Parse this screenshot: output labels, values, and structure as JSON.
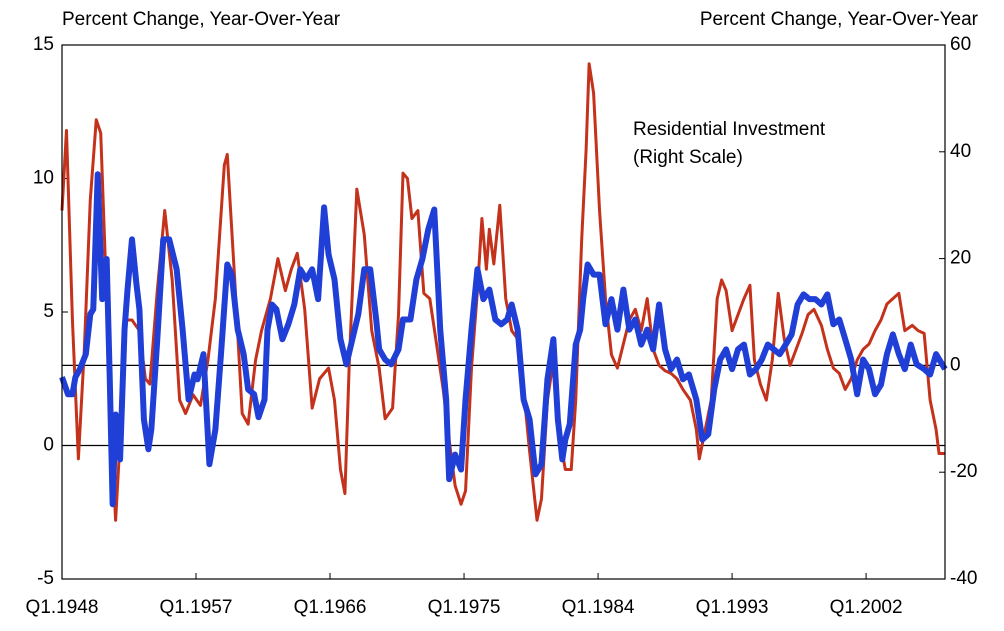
{
  "chart_data": {
    "type": "line",
    "y_label": "Percent Change, Year-Over-Year",
    "y2_label": "Percent Change, Year-Over-Year",
    "annotation": [
      "Residential Investment",
      "(Right Scale)"
    ],
    "xlim": [
      1948,
      2007.3
    ],
    "xticks": [
      {
        "value": 1948,
        "label": "Q1.1948"
      },
      {
        "value": 1957,
        "label": "Q1.1957"
      },
      {
        "value": 1966,
        "label": "Q1.1966"
      },
      {
        "value": 1975,
        "label": "Q1.1975"
      },
      {
        "value": 1984,
        "label": "Q1.1984"
      },
      {
        "value": 1993,
        "label": "Q1.1993"
      },
      {
        "value": 2002,
        "label": "Q1.2002"
      }
    ],
    "ylim": [
      -5,
      15
    ],
    "yticks": [
      -5,
      0,
      5,
      10,
      15
    ],
    "y2lim": [
      -40,
      60
    ],
    "y2ticks": [
      -40,
      -20,
      0,
      20,
      40,
      60
    ],
    "series": [
      {
        "color": "#c4321c",
        "axis": "y",
        "x": [
          1948.0,
          1948.3,
          1948.7,
          1949.1,
          1949.5,
          1949.9,
          1950.3,
          1950.6,
          1951.0,
          1951.4,
          1951.6,
          1951.9,
          1952.2,
          1952.7,
          1953.2,
          1953.6,
          1953.9,
          1954.4,
          1954.9,
          1955.4,
          1955.9,
          1956.3,
          1956.8,
          1957.3,
          1957.8,
          1958.3,
          1958.9,
          1959.1,
          1959.6,
          1960.1,
          1960.5,
          1961.0,
          1961.4,
          1962.0,
          1962.5,
          1963.0,
          1963.4,
          1963.8,
          1964.3,
          1964.8,
          1965.3,
          1965.9,
          1966.3,
          1966.7,
          1967.0,
          1967.3,
          1967.8,
          1968.3,
          1968.8,
          1969.3,
          1969.7,
          1970.2,
          1970.6,
          1970.9,
          1971.2,
          1971.5,
          1971.9,
          1972.3,
          1972.7,
          1973.1,
          1973.6,
          1974.0,
          1974.4,
          1974.8,
          1975.1,
          1975.5,
          1975.9,
          1976.2,
          1976.5,
          1976.7,
          1977.0,
          1977.4,
          1977.8,
          1978.2,
          1978.6,
          1979.0,
          1979.4,
          1979.9,
          1980.2,
          1980.6,
          1981.0,
          1981.4,
          1981.8,
          1982.2,
          1982.5,
          1982.9,
          1983.2,
          1983.4,
          1983.7,
          1984.1,
          1984.5,
          1984.9,
          1985.3,
          1985.7,
          1986.1,
          1986.5,
          1986.9,
          1987.3,
          1987.7,
          1988.1,
          1988.5,
          1988.9,
          1989.3,
          1989.7,
          1990.2,
          1990.6,
          1990.8,
          1991.2,
          1991.6,
          1992.0,
          1992.3,
          1992.6,
          1993.0,
          1993.4,
          1993.8,
          1994.2,
          1994.5,
          1994.9,
          1995.3,
          1995.7,
          1996.1,
          1996.5,
          1996.9,
          1997.3,
          1997.7,
          1998.1,
          1998.5,
          1999.0,
          1999.4,
          1999.8,
          2000.2,
          2000.6,
          2001.0,
          2001.4,
          2001.8,
          2002.2,
          2002.6,
          2003.0,
          2003.4,
          2003.8,
          2004.2,
          2004.6,
          2005.1,
          2005.5,
          2005.9,
          2006.3,
          2006.7,
          2006.9,
          2007.3
        ],
        "values": [
          8.8,
          11.8,
          4.7,
          -0.5,
          3.6,
          9.2,
          12.2,
          11.7,
          5.5,
          -0.5,
          -2.8,
          0.2,
          4.7,
          4.7,
          4.3,
          2.5,
          2.3,
          5.8,
          8.8,
          6.2,
          1.7,
          1.2,
          1.9,
          1.5,
          3.2,
          5.5,
          10.5,
          10.9,
          6.2,
          1.2,
          0.8,
          3.2,
          4.3,
          5.5,
          7.0,
          5.8,
          6.6,
          7.2,
          5.1,
          1.4,
          2.5,
          2.9,
          1.7,
          -0.9,
          -1.8,
          3.2,
          9.6,
          7.9,
          4.3,
          2.9,
          1.0,
          1.4,
          4.9,
          10.2,
          10.0,
          8.5,
          8.8,
          5.7,
          5.5,
          4.0,
          2.1,
          0.2,
          -1.5,
          -2.2,
          -1.7,
          2.9,
          5.8,
          8.5,
          6.6,
          8.1,
          6.8,
          9.0,
          5.5,
          4.3,
          4.0,
          2.1,
          -0.2,
          -2.8,
          -2.0,
          1.7,
          3.2,
          0.4,
          -0.9,
          -0.9,
          1.7,
          7.7,
          11.1,
          14.3,
          13.2,
          8.8,
          5.5,
          3.4,
          2.9,
          3.8,
          4.7,
          5.1,
          4.3,
          5.5,
          3.6,
          3.0,
          2.8,
          2.7,
          2.5,
          2.1,
          1.7,
          0.6,
          -0.5,
          0.6,
          1.7,
          5.5,
          6.2,
          5.8,
          4.3,
          4.9,
          5.5,
          6.0,
          3.2,
          2.3,
          1.7,
          3.2,
          5.7,
          4.0,
          3.0,
          3.6,
          4.2,
          4.9,
          5.1,
          4.5,
          3.6,
          2.9,
          2.7,
          2.1,
          2.5,
          3.2,
          3.6,
          3.8,
          4.3,
          4.7,
          5.3,
          5.5,
          5.7,
          4.3,
          4.5,
          4.3,
          4.2,
          1.7,
          0.6,
          -0.3,
          -0.3
        ]
      },
      {
        "color": "#1f3fd6",
        "axis": "y2",
        "x": [
          1948.0,
          1948.4,
          1948.7,
          1948.9,
          1949.2,
          1949.6,
          1949.9,
          1950.1,
          1950.4,
          1950.7,
          1951.0,
          1951.2,
          1951.4,
          1951.6,
          1951.9,
          1952.2,
          1952.4,
          1952.7,
          1953.0,
          1953.2,
          1953.5,
          1953.8,
          1954.0,
          1954.4,
          1954.8,
          1955.2,
          1955.7,
          1956.1,
          1956.5,
          1956.9,
          1957.1,
          1957.5,
          1957.9,
          1958.3,
          1958.7,
          1959.1,
          1959.4,
          1959.8,
          1960.2,
          1960.5,
          1960.9,
          1961.2,
          1961.6,
          1961.8,
          1962.1,
          1962.4,
          1962.8,
          1963.2,
          1963.6,
          1964.0,
          1964.4,
          1964.8,
          1965.2,
          1965.6,
          1965.9,
          1966.3,
          1966.7,
          1967.1,
          1967.5,
          1967.9,
          1968.3,
          1968.7,
          1969.1,
          1969.3,
          1969.7,
          1970.1,
          1970.6,
          1970.9,
          1971.4,
          1971.8,
          1972.2,
          1972.6,
          1973.0,
          1973.4,
          1973.8,
          1974.0,
          1974.4,
          1974.8,
          1975.1,
          1975.5,
          1975.9,
          1976.3,
          1976.7,
          1977.1,
          1977.5,
          1977.9,
          1978.2,
          1978.6,
          1979.0,
          1979.4,
          1979.8,
          1980.2,
          1980.6,
          1981.0,
          1981.3,
          1981.6,
          1981.8,
          1982.1,
          1982.5,
          1982.8,
          1983.0,
          1983.3,
          1983.7,
          1984.1,
          1984.5,
          1984.9,
          1985.3,
          1985.7,
          1986.1,
          1986.5,
          1986.9,
          1987.3,
          1987.7,
          1988.1,
          1988.5,
          1988.9,
          1989.3,
          1989.7,
          1990.1,
          1990.6,
          1991.0,
          1991.4,
          1991.8,
          1992.2,
          1992.6,
          1993.0,
          1993.4,
          1993.8,
          1994.2,
          1994.6,
          1995.0,
          1995.4,
          1995.8,
          1996.2,
          1996.6,
          1997.0,
          1997.4,
          1997.8,
          1998.2,
          1998.6,
          1999.0,
          1999.4,
          1999.8,
          2000.2,
          2000.6,
          2001.0,
          2001.4,
          2001.8,
          2002.2,
          2002.6,
          2003.0,
          2003.4,
          2003.8,
          2004.2,
          2004.6,
          2005.0,
          2005.4,
          2005.9,
          2006.3,
          2006.7,
          2007.3
        ],
        "values": [
          -2.2,
          -5.4,
          -5.4,
          -2.2,
          -0.7,
          2.1,
          9.6,
          10.5,
          35.8,
          12.4,
          19.9,
          -1.7,
          -26.0,
          -9.2,
          -17.6,
          6.7,
          14.2,
          23.6,
          15.2,
          10.5,
          -10.1,
          -15.7,
          -12.0,
          4.9,
          23.6,
          23.6,
          18.0,
          6.7,
          -6.4,
          -1.7,
          -2.6,
          2.1,
          -18.5,
          -12.0,
          3.0,
          18.9,
          17.0,
          6.7,
          2.1,
          -4.5,
          -5.4,
          -9.7,
          -6.4,
          6.7,
          11.4,
          10.5,
          4.9,
          7.7,
          11.4,
          18.0,
          16.1,
          18.0,
          12.4,
          29.6,
          20.8,
          16.1,
          4.9,
          0.2,
          4.9,
          9.6,
          18.0,
          18.0,
          8.6,
          3.0,
          1.1,
          0.2,
          3.0,
          8.6,
          8.6,
          16.1,
          19.9,
          25.5,
          29.2,
          6.7,
          -6.4,
          -21.3,
          -16.7,
          -19.5,
          -6.4,
          6.7,
          18.0,
          12.4,
          14.2,
          8.6,
          7.7,
          8.6,
          11.4,
          6.7,
          -6.4,
          -10.1,
          -20.4,
          -18.5,
          -2.6,
          4.9,
          -10.1,
          -17.6,
          -13.9,
          -11.0,
          3.9,
          6.7,
          12.4,
          18.9,
          17.0,
          17.0,
          7.7,
          12.4,
          6.7,
          14.2,
          6.7,
          8.6,
          3.9,
          6.7,
          3.0,
          11.4,
          3.0,
          -0.7,
          1.1,
          -2.6,
          -1.7,
          -6.4,
          -13.9,
          -12.9,
          -4.5,
          1.1,
          3.0,
          -0.7,
          3.0,
          3.9,
          -1.7,
          -0.7,
          1.1,
          3.9,
          3.0,
          2.1,
          3.9,
          5.8,
          11.4,
          13.3,
          12.4,
          12.4,
          11.4,
          13.3,
          7.7,
          8.6,
          4.9,
          1.1,
          -5.4,
          1.1,
          -0.7,
          -5.4,
          -3.6,
          2.1,
          5.8,
          2.1,
          -0.7,
          3.9,
          0.2,
          -0.7,
          -1.7,
          2.1,
          -0.7
        ]
      }
    ]
  }
}
